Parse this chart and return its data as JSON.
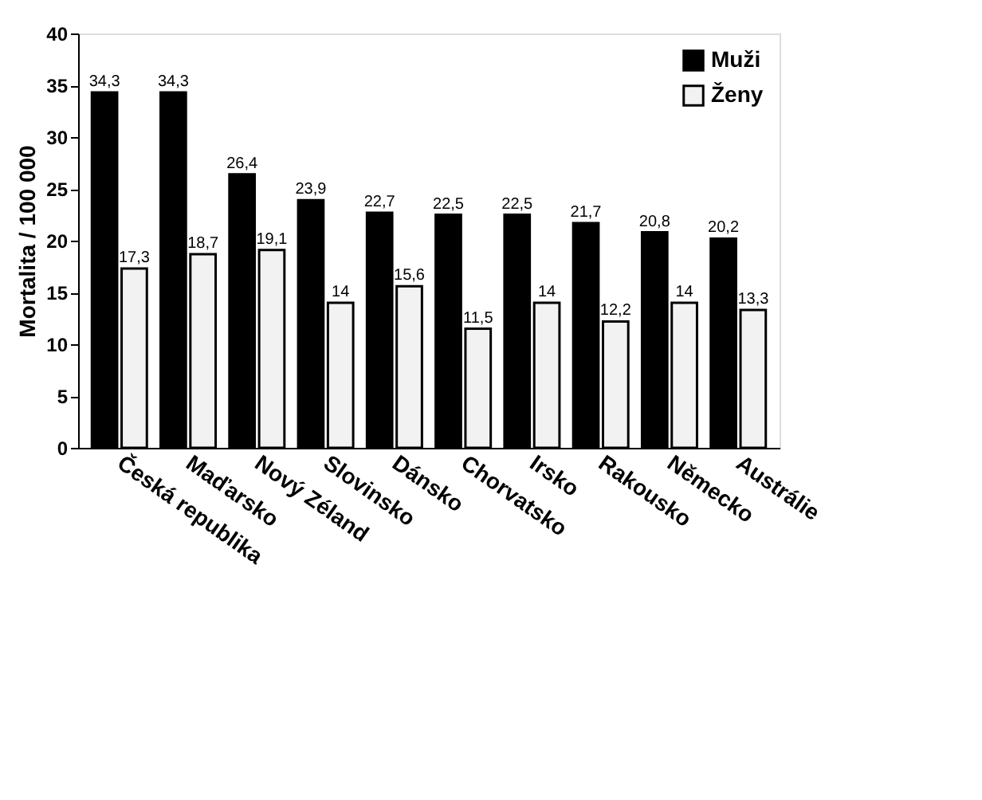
{
  "chart_data": {
    "type": "bar",
    "ylabel": "Mortalita / 100 000",
    "categories": [
      "Česká republika",
      "Maďarsko",
      "Nový Zéland",
      "Slovinsko",
      "Dánsko",
      "Chorvatsko",
      "Irsko",
      "Rakousko",
      "Německo",
      "Austrálie"
    ],
    "series": [
      {
        "name": "Muži",
        "color": "#000000",
        "values": [
          34.3,
          34.3,
          26.4,
          23.9,
          22.7,
          22.5,
          22.5,
          21.7,
          20.8,
          20.2
        ],
        "value_labels": [
          "34,3",
          "34,3",
          "26,4",
          "23,9",
          "22,7",
          "22,5",
          "22,5",
          "21,7",
          "20,8",
          "20,2"
        ]
      },
      {
        "name": "Ženy",
        "color": "#f2f2f2",
        "values": [
          17.3,
          18.7,
          19.1,
          14,
          15.6,
          11.5,
          14,
          12.2,
          14,
          13.3
        ],
        "value_labels": [
          "17,3",
          "18,7",
          "19,1",
          "14",
          "15,6",
          "11,5",
          "14",
          "12,2",
          "14",
          "13,3"
        ]
      }
    ],
    "ylim": [
      0,
      40
    ],
    "yticks": [
      0,
      5,
      10,
      15,
      20,
      25,
      30,
      35,
      40
    ],
    "grid": false,
    "legend": "top right"
  }
}
